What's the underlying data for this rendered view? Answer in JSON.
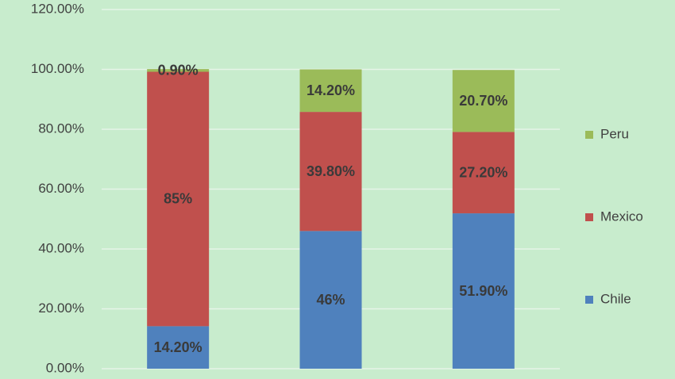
{
  "chart_data": {
    "type": "bar",
    "stacked": true,
    "categories": [
      null,
      null,
      null
    ],
    "series": [
      {
        "name": "Chile",
        "color": "#4f81bd",
        "values": [
          14.2,
          46,
          51.9
        ],
        "value_labels": [
          "14.20%",
          "46%",
          "51.90%"
        ]
      },
      {
        "name": "Mexico",
        "color": "#c0504d",
        "values": [
          85,
          39.8,
          27.2
        ],
        "value_labels": [
          "85%",
          "39.80%",
          "27.20%"
        ]
      },
      {
        "name": "Peru",
        "color": "#9bbb59",
        "values": [
          0.9,
          14.2,
          20.7
        ],
        "value_labels": [
          "0.90%",
          "14.20%",
          "20.70%"
        ]
      }
    ],
    "ylim": [
      0,
      120
    ],
    "yticks": [
      {
        "value": 0,
        "label": "0.00%"
      },
      {
        "value": 20,
        "label": "20.00%"
      },
      {
        "value": 40,
        "label": "40.00%"
      },
      {
        "value": 60,
        "label": "60.00%"
      },
      {
        "value": 80,
        "label": "80.00%"
      },
      {
        "value": 100,
        "label": "100.00%"
      },
      {
        "value": 120,
        "label": "120.00%"
      }
    ],
    "grid": true,
    "legend": "right"
  }
}
